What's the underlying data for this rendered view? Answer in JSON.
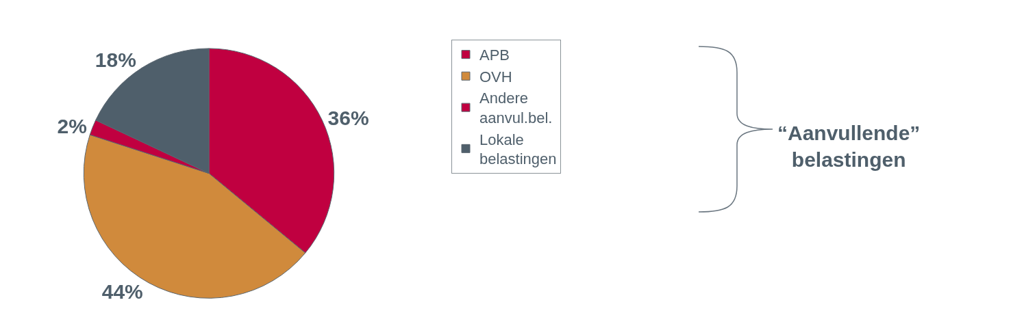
{
  "chart_data": {
    "type": "pie",
    "categories": [
      "APB",
      "OVH",
      "Andere aanvul.bel.",
      "Lokale belastingen"
    ],
    "values": [
      36,
      44,
      2,
      18
    ],
    "value_labels": [
      "36%",
      "44%",
      "2%",
      "18%"
    ],
    "colors": [
      "#c00040",
      "#d08a3c",
      "#c00040",
      "#4f5f6b"
    ],
    "legend": "right",
    "annotations": [
      "“Aanvullende” belastingen"
    ]
  }
}
